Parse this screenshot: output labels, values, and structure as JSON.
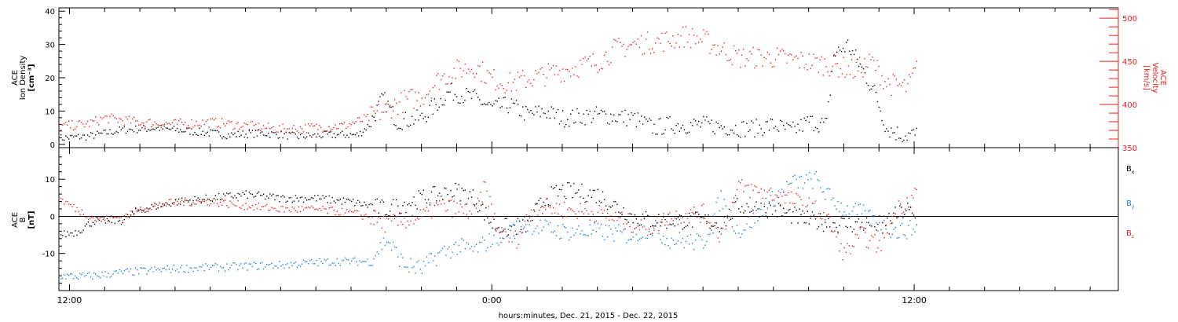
{
  "chart_data": [
    {
      "type": "scatter",
      "x_axis_label": "hours:minutes, Dec. 21, 2015 - Dec. 22, 2015",
      "x_tick_labels": [
        "12:00",
        "0:00",
        "12:00"
      ],
      "x_tick_hours": [
        12,
        24,
        36
      ],
      "x_range_hours": [
        11.7,
        41.8
      ],
      "left_axis": {
        "label": [
          "ACE",
          "Ion Density",
          "[cm⁻³]"
        ],
        "range": [
          -1,
          41
        ],
        "ticks": [
          0,
          10,
          20,
          30,
          40
        ]
      },
      "right_axis": {
        "label": [
          "ACE",
          "Velocity",
          "[km/s]"
        ],
        "range": [
          350,
          512
        ],
        "ticks": [
          350,
          400,
          450,
          500
        ],
        "color": "#e8211e"
      },
      "series": [
        {
          "axis": "left",
          "color": "#000000",
          "points": [
            [
              11.7,
              2
            ],
            [
              12.5,
              2.5
            ],
            [
              13.5,
              4.5
            ],
            [
              14.5,
              5
            ],
            [
              15.5,
              4
            ],
            [
              16.5,
              3
            ],
            [
              17.5,
              3.5
            ],
            [
              18.5,
              2.5
            ],
            [
              19.5,
              3
            ],
            [
              20.2,
              3
            ],
            [
              20.5,
              6
            ],
            [
              20.9,
              14
            ],
            [
              21.3,
              7
            ],
            [
              22,
              8
            ],
            [
              22.8,
              16
            ],
            [
              23.5,
              14
            ],
            [
              24,
              11
            ],
            [
              24.5,
              12
            ],
            [
              25,
              9
            ],
            [
              25.5,
              10
            ],
            [
              26,
              8
            ],
            [
              27,
              9
            ],
            [
              28,
              8
            ],
            [
              28.6,
              5
            ],
            [
              29,
              6
            ],
            [
              30,
              6
            ],
            [
              31,
              5
            ],
            [
              31.5,
              5
            ],
            [
              32,
              6
            ],
            [
              32.5,
              4
            ],
            [
              33,
              7
            ],
            [
              33.5,
              6
            ],
            [
              33.7,
              27
            ],
            [
              34.1,
              30
            ],
            [
              34.5,
              23
            ],
            [
              34.9,
              15
            ],
            [
              35.2,
              5
            ],
            [
              35.6,
              3
            ],
            [
              36.1,
              3
            ]
          ]
        },
        {
          "axis": "right",
          "color": "#e8211e",
          "points": [
            [
              11.7,
              375
            ],
            [
              12.5,
              378
            ],
            [
              13,
              385
            ],
            [
              14,
              380
            ],
            [
              15,
              378
            ],
            [
              16,
              380
            ],
            [
              17,
              376
            ],
            [
              18,
              372
            ],
            [
              19,
              374
            ],
            [
              19.8,
              376
            ],
            [
              20.5,
              385
            ],
            [
              21,
              395
            ],
            [
              21.5,
              405
            ],
            [
              22,
              410
            ],
            [
              22.5,
              430
            ],
            [
              23,
              440
            ],
            [
              23.5,
              445
            ],
            [
              24,
              430
            ],
            [
              24.5,
              425
            ],
            [
              25,
              430
            ],
            [
              26,
              440
            ],
            [
              27,
              450
            ],
            [
              27.5,
              465
            ],
            [
              28,
              470
            ],
            [
              29,
              475
            ],
            [
              29.5,
              480
            ],
            [
              30,
              475
            ],
            [
              30.5,
              465
            ],
            [
              31,
              455
            ],
            [
              32,
              455
            ],
            [
              33,
              450
            ],
            [
              33.8,
              445
            ],
            [
              34.3,
              440
            ],
            [
              34.8,
              450
            ],
            [
              35.2,
              425
            ],
            [
              35.8,
              420
            ],
            [
              36.1,
              445
            ]
          ]
        }
      ]
    },
    {
      "type": "scatter",
      "x_range_hours": [
        11.7,
        41.8
      ],
      "left_axis": {
        "label": [
          "ACE",
          "B",
          "[nT]"
        ],
        "range": [
          -20,
          18.5
        ],
        "ticks": [
          -10,
          0,
          10
        ]
      },
      "zero_line": true,
      "series": [
        {
          "name": "Bx",
          "color": "#000000",
          "points": [
            [
              11.7,
              -5
            ],
            [
              12.2,
              -4
            ],
            [
              12.7,
              -1
            ],
            [
              13.5,
              -1
            ],
            [
              14,
              2
            ],
            [
              15,
              4
            ],
            [
              16,
              5
            ],
            [
              17,
              6
            ],
            [
              18,
              5
            ],
            [
              19,
              5
            ],
            [
              20,
              4
            ],
            [
              20.5,
              3
            ],
            [
              21,
              2
            ],
            [
              22,
              5
            ],
            [
              22.5,
              6
            ],
            [
              23,
              7
            ],
            [
              23.5,
              5
            ],
            [
              24,
              -2
            ],
            [
              24.5,
              -3
            ],
            [
              25,
              -2
            ],
            [
              25.5,
              5
            ],
            [
              26,
              7
            ],
            [
              27,
              6
            ],
            [
              27.5,
              3
            ],
            [
              28,
              0
            ],
            [
              28.5,
              -1
            ],
            [
              29.5,
              -1
            ],
            [
              30,
              -1
            ],
            [
              30.5,
              -2
            ],
            [
              31,
              3
            ],
            [
              32,
              2
            ],
            [
              33,
              -1
            ],
            [
              34,
              -2
            ],
            [
              35,
              -2
            ],
            [
              35.8,
              2
            ],
            [
              36.1,
              -2
            ]
          ]
        },
        {
          "name": "By",
          "color": "#1e7ecf",
          "points": [
            [
              11.7,
              -16
            ],
            [
              12.5,
              -16
            ],
            [
              13.5,
              -15
            ],
            [
              15,
              -14
            ],
            [
              16.5,
              -13.5
            ],
            [
              18,
              -13
            ],
            [
              19.5,
              -12
            ],
            [
              20.5,
              -12
            ],
            [
              21,
              -6
            ],
            [
              21.5,
              -13
            ],
            [
              22,
              -14
            ],
            [
              22.5,
              -10
            ],
            [
              23,
              -8
            ],
            [
              23.5,
              -9
            ],
            [
              24,
              -6
            ],
            [
              24.5,
              -4
            ],
            [
              25,
              -2
            ],
            [
              25.5,
              -3
            ],
            [
              26,
              -4
            ],
            [
              27,
              -4
            ],
            [
              28,
              -5
            ],
            [
              28.5,
              -3
            ],
            [
              29,
              -6
            ],
            [
              30,
              -7
            ],
            [
              30.5,
              5
            ],
            [
              31,
              -4
            ],
            [
              31.5,
              0
            ],
            [
              32,
              5
            ],
            [
              32.5,
              9
            ],
            [
              33.2,
              10
            ],
            [
              33.5,
              6
            ],
            [
              34,
              2
            ],
            [
              34.5,
              1
            ],
            [
              35,
              -2
            ],
            [
              35.5,
              -4
            ],
            [
              36.1,
              -3
            ]
          ]
        },
        {
          "name": "Bz",
          "color": "#e8211e",
          "points": [
            [
              11.7,
              5
            ],
            [
              12.2,
              2
            ],
            [
              12.8,
              -1
            ],
            [
              13.5,
              0
            ],
            [
              14,
              2
            ],
            [
              15,
              4
            ],
            [
              16,
              4
            ],
            [
              17,
              3
            ],
            [
              18,
              2
            ],
            [
              19,
              2
            ],
            [
              20,
              1
            ],
            [
              20.5,
              0
            ],
            [
              21,
              -2
            ],
            [
              22,
              0
            ],
            [
              22.5,
              3
            ],
            [
              23,
              2
            ],
            [
              23.5,
              1
            ],
            [
              23.8,
              8
            ],
            [
              24.2,
              -5
            ],
            [
              24.7,
              -6
            ],
            [
              25.2,
              3
            ],
            [
              26,
              2
            ],
            [
              27,
              1
            ],
            [
              28,
              -2
            ],
            [
              28.5,
              -3
            ],
            [
              29,
              0
            ],
            [
              30,
              1
            ],
            [
              30.5,
              -5
            ],
            [
              31,
              8
            ],
            [
              32,
              6
            ],
            [
              33,
              3
            ],
            [
              33.5,
              0
            ],
            [
              34,
              -10
            ],
            [
              34.5,
              -5
            ],
            [
              35,
              -8
            ],
            [
              35.5,
              2
            ],
            [
              36.1,
              7
            ]
          ]
        }
      ],
      "legend": [
        {
          "label": "B",
          "sub": "x",
          "color": "#000000"
        },
        {
          "label": "B",
          "sub": "y",
          "color": "#1e7ecf"
        },
        {
          "label": "B",
          "sub": "z",
          "color": "#e8211e"
        }
      ]
    }
  ]
}
